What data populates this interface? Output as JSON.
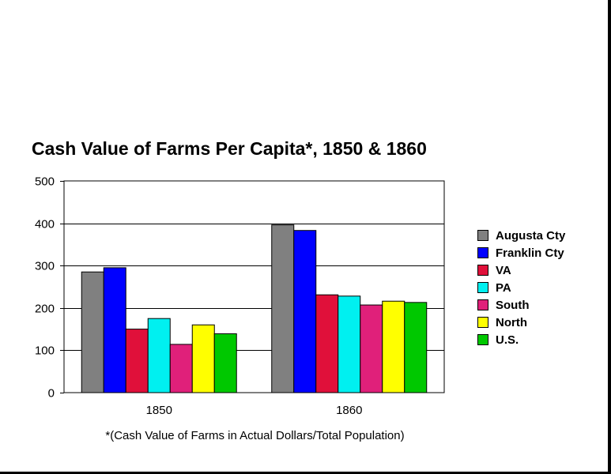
{
  "chart_data": {
    "type": "bar",
    "title": "Cash Value of Farms Per Capita*, 1850 & 1860",
    "footnote": "*(Cash Value of Farms in Actual Dollars/Total Population)",
    "categories": [
      "1850",
      "1860"
    ],
    "ylim": [
      0,
      500
    ],
    "yticks": [
      "0",
      "100",
      "200",
      "300",
      "400",
      "500"
    ],
    "grid": true,
    "legend_position": "right",
    "series": [
      {
        "name": "Augusta Cty",
        "color": "#808080",
        "values": [
          285,
          396
        ]
      },
      {
        "name": "Franklin Cty",
        "color": "#0000ff",
        "values": [
          295,
          383
        ]
      },
      {
        "name": "VA",
        "color": "#e0103a",
        "values": [
          150,
          231
        ]
      },
      {
        "name": "PA",
        "color": "#00f0f0",
        "values": [
          175,
          228
        ]
      },
      {
        "name": "South",
        "color": "#e0207a",
        "values": [
          114,
          207
        ]
      },
      {
        "name": "North",
        "color": "#ffff00",
        "values": [
          160,
          216
        ]
      },
      {
        "name": "U.S.",
        "color": "#00c800",
        "values": [
          139,
          213
        ]
      }
    ]
  }
}
